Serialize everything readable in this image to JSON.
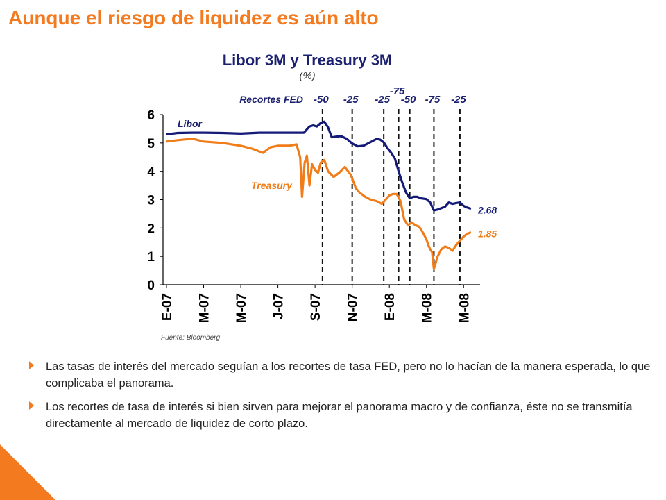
{
  "slide": {
    "title": "Aunque el riesgo de liquidez es aún alto",
    "bullets": [
      "Las tasas de interés del mercado seguían a los recortes de tasa FED, pero no lo hacían de la manera esperada, lo que complicaba el panorama.",
      "Los recortes de tasa de interés si bien sirven para mejorar el panorama macro y de confianza, éste no se transmitía directamente al mercado de liquidez de corto plazo."
    ]
  },
  "chart_data": {
    "type": "line",
    "title": "Libor 3M y Treasury 3M",
    "subtitle": "(%)",
    "ylim": [
      0,
      6
    ],
    "y_ticks": [
      "0",
      "1",
      "2",
      "3",
      "4",
      "5",
      "6"
    ],
    "x_ticks": [
      "E-07",
      "M-07",
      "M-07",
      "J-07",
      "S-07",
      "N-07",
      "E-08",
      "M-08",
      "M-08"
    ],
    "source": "Fuente: Bloomberg",
    "fed_cuts_label": "Recortes FED",
    "fed_cuts": [
      {
        "label": "-50",
        "x": 4.2
      },
      {
        "label": "-25",
        "x": 5.0
      },
      {
        "label": "-25",
        "x": 5.85
      },
      {
        "label": "-75",
        "x": 6.25
      },
      {
        "label": "-50",
        "x": 6.55
      },
      {
        "label": "-75",
        "x": 7.2
      },
      {
        "label": "-25",
        "x": 7.9
      }
    ],
    "series": [
      {
        "name": "Libor",
        "color": "#141a78",
        "end_label": "2.68",
        "x": [
          0,
          0.3,
          0.7,
          1,
          1.5,
          2,
          2.5,
          3,
          3.4,
          3.7,
          3.85,
          3.95,
          4.05,
          4.15,
          4.25,
          4.35,
          4.45,
          4.55,
          4.7,
          4.85,
          5,
          5.15,
          5.3,
          5.45,
          5.55,
          5.65,
          5.75,
          5.85,
          5.95,
          6.05,
          6.15,
          6.25,
          6.35,
          6.45,
          6.55,
          6.65,
          6.75,
          6.85,
          7,
          7.1,
          7.2,
          7.3,
          7.4,
          7.5,
          7.6,
          7.7,
          7.8,
          7.9,
          8.0,
          8.1,
          8.2
        ],
        "values": [
          5.3,
          5.35,
          5.36,
          5.36,
          5.35,
          5.33,
          5.36,
          5.36,
          5.36,
          5.36,
          5.58,
          5.62,
          5.58,
          5.7,
          5.75,
          5.55,
          5.2,
          5.22,
          5.24,
          5.15,
          4.98,
          4.88,
          4.9,
          5.0,
          5.07,
          5.14,
          5.12,
          5.02,
          4.82,
          4.65,
          4.45,
          4.0,
          3.6,
          3.25,
          3.05,
          3.1,
          3.1,
          3.05,
          3.02,
          2.9,
          2.62,
          2.65,
          2.7,
          2.75,
          2.9,
          2.85,
          2.88,
          2.9,
          2.78,
          2.72,
          2.68
        ]
      },
      {
        "name": "Treasury",
        "color": "#f07d1a",
        "end_label": "1.85",
        "x": [
          0,
          0.3,
          0.7,
          1,
          1.5,
          2,
          2.3,
          2.6,
          2.8,
          3.0,
          3.3,
          3.5,
          3.6,
          3.65,
          3.72,
          3.78,
          3.85,
          3.92,
          4.0,
          4.08,
          4.15,
          4.25,
          4.35,
          4.5,
          4.65,
          4.8,
          4.95,
          5.0,
          5.1,
          5.2,
          5.35,
          5.5,
          5.65,
          5.8,
          5.9,
          6.0,
          6.1,
          6.2,
          6.3,
          6.4,
          6.5,
          6.6,
          6.7,
          6.8,
          6.9,
          7.0,
          7.05,
          7.1,
          7.15,
          7.2,
          7.3,
          7.4,
          7.5,
          7.6,
          7.7,
          7.8,
          7.9,
          8.0,
          8.1,
          8.2
        ],
        "values": [
          5.05,
          5.1,
          5.15,
          5.05,
          5.0,
          4.9,
          4.8,
          4.65,
          4.85,
          4.9,
          4.9,
          4.95,
          4.5,
          3.1,
          4.3,
          4.55,
          3.5,
          4.25,
          4.05,
          3.95,
          4.3,
          4.4,
          4.0,
          3.8,
          3.95,
          4.15,
          3.9,
          3.75,
          3.4,
          3.25,
          3.1,
          3.0,
          2.95,
          2.85,
          3.0,
          3.15,
          3.2,
          3.2,
          2.95,
          2.3,
          2.1,
          2.2,
          2.1,
          2.05,
          1.85,
          1.6,
          1.4,
          1.25,
          1.15,
          0.55,
          1.0,
          1.25,
          1.35,
          1.3,
          1.2,
          1.4,
          1.55,
          1.7,
          1.8,
          1.85
        ]
      }
    ],
    "series_label_color": "#1a1f6e"
  }
}
